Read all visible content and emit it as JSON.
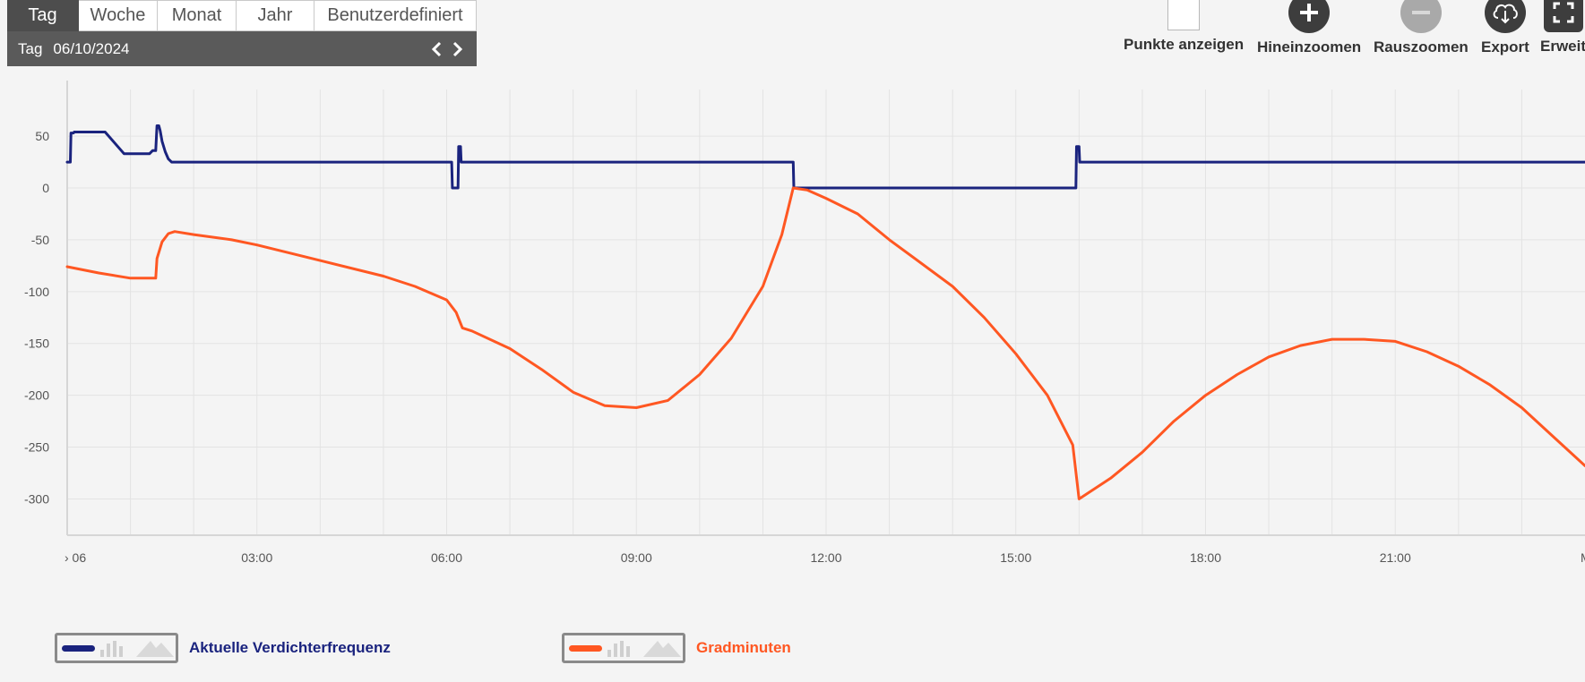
{
  "period_tabs": [
    "Tag",
    "Woche",
    "Monat",
    "Jahr",
    "Benutzerdefiniert"
  ],
  "active_tab": "Tag",
  "datebar": {
    "label": "Tag",
    "date": "06/10/2024"
  },
  "toolbar": {
    "show_points": "Punkte anzeigen",
    "zoom_in": "Hineinzoomen",
    "zoom_out": "Rauszoomen",
    "export": "Export",
    "expand": "Erweit"
  },
  "colors": {
    "compressor": "#1a237e",
    "degree_minutes": "#ff5722",
    "grid": "#e3e3e3"
  },
  "chart_data": {
    "type": "line",
    "x_unit": "hours",
    "xlim": [
      0,
      24.0
    ],
    "ylim": [
      -335,
      95
    ],
    "y_ticks": [
      50,
      0,
      -50,
      -100,
      -150,
      -200,
      -250,
      -300
    ],
    "y_tick_labels": [
      "50",
      "0",
      "-50",
      "-100",
      "-150",
      "-200",
      "-250",
      "-300"
    ],
    "x_ticks": [
      3,
      6,
      9,
      12,
      15,
      18,
      21
    ],
    "x_tick_labels": [
      "03:00",
      "06:00",
      "09:00",
      "12:00",
      "15:00",
      "18:00",
      "21:00"
    ],
    "x_edge_labels": [
      "› 06",
      "M"
    ],
    "grid": true,
    "series": [
      {
        "name": "Aktuelle Verdichterfrequenz",
        "x": [
          0,
          0.05,
          0.06,
          0.1,
          0.11,
          0.6,
          0.9,
          1.0,
          1.3,
          1.35,
          1.4,
          1.42,
          1.45,
          1.47,
          1.5,
          1.55,
          1.6,
          1.65,
          1.7,
          6.08,
          6.09,
          6.18,
          6.19,
          6.22,
          6.23,
          6.26,
          6.27,
          11.48,
          11.49,
          15.95,
          15.96,
          16.0,
          16.01,
          24
        ],
        "y": [
          25,
          25,
          53,
          53,
          54,
          54,
          33,
          33,
          33,
          36,
          36,
          60,
          60,
          55,
          45,
          35,
          28,
          25,
          25,
          25,
          0,
          0,
          40,
          40,
          25,
          25,
          25,
          25,
          0,
          0,
          40,
          40,
          25,
          25
        ]
      },
      {
        "name": "Gradminuten",
        "x": [
          0,
          0.5,
          1.0,
          1.4,
          1.42,
          1.5,
          1.6,
          1.7,
          2.0,
          2.6,
          3.0,
          4.0,
          5.0,
          5.5,
          6.0,
          6.15,
          6.25,
          6.4,
          7.0,
          7.5,
          8.0,
          8.5,
          9.0,
          9.5,
          10.0,
          10.5,
          11.0,
          11.3,
          11.48,
          11.7,
          12.0,
          12.5,
          13.0,
          14.0,
          14.5,
          15.0,
          15.5,
          15.9,
          16.0,
          16.5,
          17.0,
          17.5,
          18.0,
          18.5,
          19.0,
          19.5,
          20.0,
          20.5,
          21.0,
          21.5,
          22.0,
          22.5,
          23.0,
          23.5,
          24.0
        ],
        "y": [
          -76,
          -82,
          -87,
          -87,
          -68,
          -52,
          -44,
          -42,
          -45,
          -50,
          -55,
          -70,
          -85,
          -95,
          -108,
          -120,
          -135,
          -138,
          -155,
          -175,
          -197,
          -210,
          -212,
          -205,
          -180,
          -145,
          -95,
          -45,
          0,
          -2,
          -10,
          -25,
          -50,
          -95,
          -125,
          -160,
          -200,
          -248,
          -300,
          -280,
          -255,
          -225,
          -200,
          -180,
          -163,
          -152,
          -146,
          -146,
          -148,
          -158,
          -172,
          -190,
          -212,
          -240,
          -268
        ]
      }
    ]
  },
  "legend": [
    {
      "label": "Aktuelle Verdichterfrequenz",
      "color": "#1a237e"
    },
    {
      "label": "Gradminuten",
      "color": "#ff5722"
    }
  ]
}
